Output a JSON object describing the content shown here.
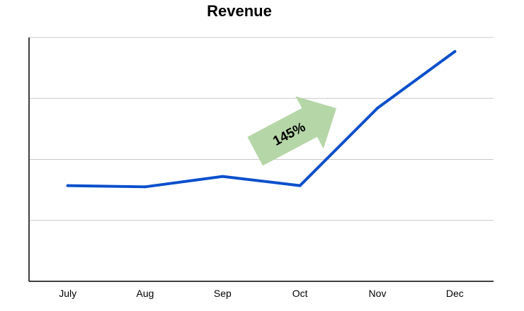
{
  "chart_data": {
    "type": "line",
    "title": "Revenue",
    "xlabel": "",
    "ylabel": "",
    "categories": [
      "July",
      "Aug",
      "Sep",
      "Oct",
      "Nov",
      "Dec"
    ],
    "series": [
      {
        "values": [
          1.57,
          1.55,
          1.72,
          1.57,
          2.84,
          3.77
        ]
      }
    ],
    "ylim": [
      0,
      4
    ],
    "grid": "horizontal",
    "legend": "none",
    "line_color": "#0a4fcc",
    "annotation": {
      "text": "145%",
      "shape": "arrow",
      "color": "#b5d6a7"
    }
  }
}
